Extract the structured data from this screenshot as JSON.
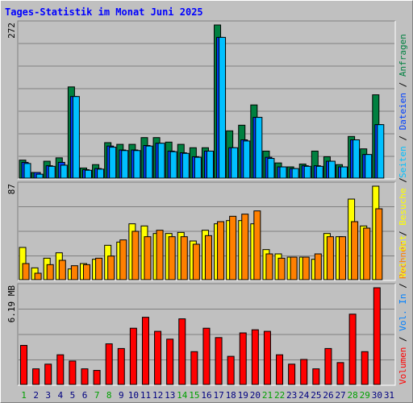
{
  "chart_data": [
    {
      "type": "bar",
      "title": "Tages-Statistik im Monat Juni 2025",
      "panel": "Anfragen / Dateien / Seiten",
      "ymax_label": "272",
      "ylim": [
        0,
        272
      ],
      "categories": [
        "1",
        "2",
        "3",
        "4",
        "5",
        "6",
        "7",
        "8",
        "9",
        "10",
        "11",
        "12",
        "13",
        "14",
        "15",
        "16",
        "17",
        "18",
        "19",
        "20",
        "21",
        "22",
        "23",
        "24",
        "25",
        "26",
        "27",
        "28",
        "29",
        "30",
        "31"
      ],
      "weekend_days": [
        "1",
        "7",
        "8",
        "14",
        "15",
        "21",
        "22",
        "28",
        "29"
      ],
      "series": [
        {
          "name": "Anfragen",
          "color": "#008040",
          "values": [
            32,
            10,
            30,
            36,
            162,
            18,
            24,
            63,
            60,
            60,
            72,
            72,
            64,
            60,
            54,
            54,
            272,
            84,
            94,
            130,
            48,
            27,
            20,
            25,
            48,
            38,
            24,
            74,
            52,
            148,
            null
          ]
        },
        {
          "name": "Dateien",
          "color": "#0040ff",
          "values": [
            28,
            10,
            22,
            28,
            145,
            15,
            17,
            57,
            50,
            50,
            58,
            62,
            48,
            45,
            38,
            48,
            250,
            54,
            68,
            108,
            37,
            20,
            17,
            22,
            22,
            30,
            20,
            68,
            42,
            95,
            null
          ]
        },
        {
          "name": "Seiten",
          "color": "#00c0ff",
          "values": [
            26,
            7,
            21,
            23,
            145,
            14,
            16,
            55,
            49,
            49,
            57,
            62,
            47,
            44,
            37,
            48,
            250,
            54,
            66,
            108,
            35,
            20,
            17,
            21,
            21,
            30,
            20,
            68,
            42,
            95,
            null
          ]
        }
      ]
    },
    {
      "type": "bar",
      "panel": "Besuche / Rechner",
      "ymax_label": "87",
      "ylim": [
        0,
        87
      ],
      "categories": [
        "1",
        "2",
        "3",
        "4",
        "5",
        "6",
        "7",
        "8",
        "9",
        "10",
        "11",
        "12",
        "13",
        "14",
        "15",
        "16",
        "17",
        "18",
        "19",
        "20",
        "21",
        "22",
        "23",
        "24",
        "25",
        "26",
        "27",
        "28",
        "29",
        "30",
        "31"
      ],
      "series": [
        {
          "name": "Besuche",
          "color": "#ffff00",
          "values": [
            30,
            11,
            20,
            25,
            10,
            15,
            19,
            32,
            35,
            52,
            50,
            43,
            43,
            44,
            36,
            46,
            52,
            55,
            55,
            52,
            28,
            24,
            21,
            21,
            19,
            43,
            40,
            75,
            50,
            87,
            null
          ]
        },
        {
          "name": "Rechner",
          "color": "#ff8000",
          "values": [
            15,
            6,
            14,
            18,
            13,
            14,
            20,
            22,
            37,
            45,
            40,
            46,
            40,
            40,
            33,
            41,
            54,
            59,
            61,
            64,
            24,
            20,
            21,
            21,
            24,
            40,
            40,
            54,
            48,
            66,
            null
          ]
        }
      ]
    },
    {
      "type": "bar",
      "panel": "Volumen",
      "ymax_label": "6.19 MB",
      "ylim": [
        0,
        6.19
      ],
      "categories": [
        "1",
        "2",
        "3",
        "4",
        "5",
        "6",
        "7",
        "8",
        "9",
        "10",
        "11",
        "12",
        "13",
        "14",
        "15",
        "16",
        "17",
        "18",
        "19",
        "20",
        "21",
        "22",
        "23",
        "24",
        "25",
        "26",
        "27",
        "28",
        "29",
        "30",
        "31"
      ],
      "series": [
        {
          "name": "Volumen",
          "color": "#ff0000",
          "values": [
            2.5,
            1.0,
            1.3,
            1.9,
            1.5,
            1.0,
            0.9,
            2.6,
            2.3,
            3.6,
            4.3,
            3.4,
            2.9,
            4.2,
            2.1,
            3.6,
            3.0,
            1.8,
            3.3,
            3.5,
            3.4,
            1.9,
            1.3,
            1.6,
            1.0,
            2.3,
            1.4,
            4.5,
            2.1,
            6.19,
            null
          ]
        }
      ]
    }
  ],
  "right_labels": {
    "anfragen": "Anfragen",
    "dateien": "Dateien",
    "seiten": "Seiten",
    "besuche": "Besuche",
    "rechner": "Rechner",
    "vol_out": "Vol. Out",
    "vol_in": "Vol. In",
    "volumen": "Volumen",
    "sep": "/"
  },
  "colors": {
    "background": "#c0c0c0",
    "plot": "#c0c0c0",
    "title": "#0000ff",
    "axis_label": "#000000",
    "day_label": "#000080",
    "weekend_label": "#00a000",
    "vol_out": "#ffff00",
    "vol_in": "#0080ff"
  }
}
